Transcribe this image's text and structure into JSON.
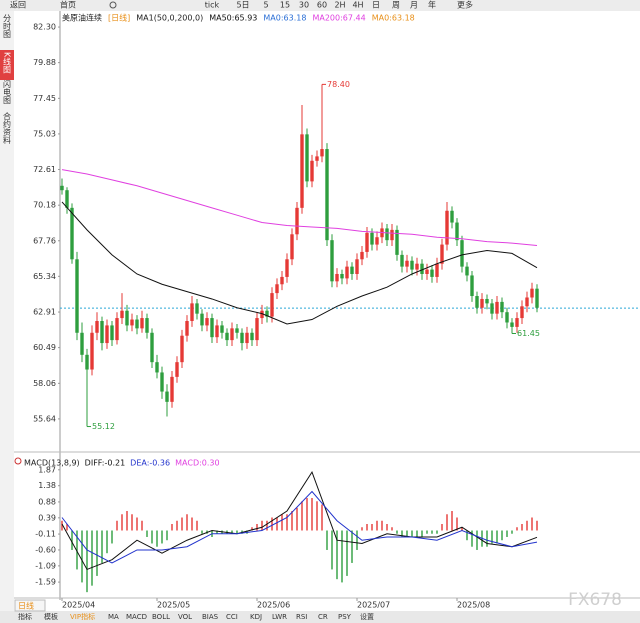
{
  "toolbar": {
    "items": [
      "返回",
      "首页",
      "tick",
      "5日",
      "5",
      "15",
      "30",
      "60",
      "2H",
      "4H",
      "日",
      "周",
      "月",
      "年",
      "更多"
    ]
  },
  "side_tabs": [
    "分时图",
    "K线图",
    "闪电图",
    "合约资料"
  ],
  "chart_data": [
    {
      "type": "candlestick",
      "title": "美原油连续",
      "period": "[日线]",
      "indicator": "MA1(50,0,200,0)",
      "ylim": [
        53.66,
        82.78
      ],
      "yticks": [
        {
          "value": 82.3,
          "label": "82.30"
        },
        79.88,
        77.45,
        75.03,
        72.61,
        70.18,
        67.76,
        65.34,
        62.91,
        60.49,
        58.06,
        55.64
      ],
      "up_color": "#e53935",
      "down_color": "#2e9e3e",
      "ohlc": [
        [
          71.5,
          72.0,
          70.9,
          71.2
        ],
        [
          71.2,
          71.4,
          69.6,
          70.0
        ],
        [
          70.0,
          70.3,
          66.2,
          66.5
        ],
        [
          66.5,
          67.0,
          61.0,
          61.5
        ],
        [
          61.5,
          62.2,
          59.5,
          60.0
        ],
        [
          60.0,
          60.4,
          55.12,
          59.0
        ],
        [
          59.0,
          62.0,
          58.6,
          61.5
        ],
        [
          61.5,
          62.9,
          61.0,
          62.3
        ],
        [
          62.3,
          62.6,
          60.3,
          60.8
        ],
        [
          60.8,
          62.4,
          60.4,
          62.0
        ],
        [
          62.0,
          62.3,
          60.6,
          61.0
        ],
        [
          61.0,
          62.9,
          60.7,
          62.5
        ],
        [
          62.5,
          64.2,
          62.1,
          63.0
        ],
        [
          63.0,
          63.4,
          61.6,
          62.0
        ],
        [
          62.0,
          62.8,
          61.6,
          62.4
        ],
        [
          62.4,
          62.7,
          61.4,
          61.8
        ],
        [
          61.8,
          63.0,
          61.5,
          62.5
        ],
        [
          62.5,
          62.8,
          61.1,
          61.5
        ],
        [
          61.5,
          61.8,
          59.1,
          59.5
        ],
        [
          59.5,
          60.0,
          58.4,
          58.8
        ],
        [
          58.8,
          59.2,
          57.0,
          57.5
        ],
        [
          57.5,
          58.0,
          55.8,
          56.8
        ],
        [
          56.8,
          58.9,
          56.4,
          58.5
        ],
        [
          58.5,
          59.9,
          58.1,
          59.5
        ],
        [
          59.5,
          61.7,
          59.1,
          61.3
        ],
        [
          61.3,
          62.7,
          60.9,
          62.3
        ],
        [
          62.3,
          64.0,
          61.9,
          63.5
        ],
        [
          63.5,
          63.8,
          62.4,
          62.8
        ],
        [
          62.8,
          63.1,
          61.6,
          62.0
        ],
        [
          62.0,
          62.9,
          61.6,
          62.5
        ],
        [
          62.5,
          62.8,
          60.8,
          61.2
        ],
        [
          61.2,
          62.4,
          60.8,
          62.0
        ],
        [
          62.0,
          62.3,
          61.1,
          61.5
        ],
        [
          61.5,
          61.8,
          60.6,
          61.0
        ],
        [
          61.0,
          62.2,
          60.6,
          61.8
        ],
        [
          61.8,
          62.1,
          61.1,
          61.5
        ],
        [
          61.5,
          61.8,
          60.3,
          60.8
        ],
        [
          60.8,
          61.9,
          60.4,
          61.5
        ],
        [
          61.5,
          61.8,
          60.6,
          61.0
        ],
        [
          61.0,
          62.9,
          60.6,
          62.5
        ],
        [
          62.5,
          63.4,
          62.1,
          63.0
        ],
        [
          63.0,
          63.3,
          62.2,
          62.6
        ],
        [
          62.6,
          64.6,
          62.2,
          64.2
        ],
        [
          64.2,
          65.2,
          63.8,
          64.8
        ],
        [
          64.8,
          65.7,
          64.4,
          65.3
        ],
        [
          65.3,
          66.9,
          64.9,
          66.5
        ],
        [
          66.5,
          68.6,
          66.1,
          68.2
        ],
        [
          68.2,
          70.4,
          67.8,
          70.0
        ],
        [
          70.0,
          77.0,
          69.6,
          75.0
        ],
        [
          75.0,
          75.4,
          71.4,
          71.8
        ],
        [
          71.8,
          73.6,
          71.4,
          73.2
        ],
        [
          73.2,
          73.9,
          72.8,
          73.5
        ],
        [
          73.5,
          78.4,
          73.1,
          74.0
        ],
        [
          74.0,
          74.4,
          67.4,
          67.8
        ],
        [
          67.8,
          68.2,
          64.6,
          65.0
        ],
        [
          65.0,
          65.9,
          64.6,
          65.5
        ],
        [
          65.5,
          65.8,
          64.8,
          65.2
        ],
        [
          65.2,
          66.4,
          64.8,
          66.0
        ],
        [
          66.0,
          66.3,
          65.1,
          65.5
        ],
        [
          65.5,
          66.9,
          65.1,
          66.5
        ],
        [
          66.5,
          67.4,
          66.1,
          67.0
        ],
        [
          67.0,
          68.7,
          66.6,
          68.3
        ],
        [
          68.3,
          68.6,
          67.1,
          67.5
        ],
        [
          67.5,
          68.4,
          67.1,
          68.0
        ],
        [
          68.0,
          69.0,
          67.6,
          68.6
        ],
        [
          68.6,
          68.9,
          67.4,
          67.8
        ],
        [
          67.8,
          68.9,
          67.4,
          68.5
        ],
        [
          68.5,
          68.8,
          66.4,
          66.8
        ],
        [
          66.8,
          67.1,
          65.6,
          66.0
        ],
        [
          66.0,
          66.8,
          65.6,
          66.4
        ],
        [
          66.4,
          66.7,
          65.4,
          65.8
        ],
        [
          65.8,
          66.6,
          65.4,
          66.2
        ],
        [
          66.2,
          66.5,
          65.1,
          65.5
        ],
        [
          65.5,
          66.2,
          65.1,
          65.8
        ],
        [
          65.8,
          66.1,
          64.9,
          65.3
        ],
        [
          65.3,
          66.6,
          64.9,
          66.2
        ],
        [
          66.2,
          67.9,
          65.8,
          67.5
        ],
        [
          67.5,
          70.4,
          67.1,
          69.8
        ],
        [
          69.8,
          70.1,
          68.6,
          69.0
        ],
        [
          69.0,
          69.3,
          67.4,
          67.8
        ],
        [
          67.8,
          68.1,
          65.6,
          66.0
        ],
        [
          66.0,
          66.3,
          65.0,
          65.4
        ],
        [
          65.4,
          65.7,
          63.6,
          64.0
        ],
        [
          64.0,
          64.3,
          62.8,
          63.2
        ],
        [
          63.2,
          64.2,
          62.8,
          63.8
        ],
        [
          63.8,
          64.1,
          63.1,
          63.5
        ],
        [
          63.5,
          63.8,
          62.4,
          62.8
        ],
        [
          62.8,
          64.0,
          62.4,
          63.6
        ],
        [
          63.6,
          63.9,
          62.5,
          62.9
        ],
        [
          62.9,
          63.2,
          61.8,
          62.2
        ],
        [
          62.2,
          62.5,
          61.45,
          61.9
        ],
        [
          61.9,
          62.9,
          61.5,
          62.5
        ],
        [
          62.5,
          63.7,
          62.1,
          63.3
        ],
        [
          63.3,
          64.3,
          62.9,
          63.9
        ],
        [
          63.9,
          64.9,
          63.5,
          64.5
        ],
        [
          64.5,
          64.8,
          62.9,
          63.2
        ]
      ],
      "series": [
        {
          "name": "MA50:65.93",
          "color": "#111111",
          "x": [
            0,
            5,
            10,
            15,
            20,
            25,
            30,
            35,
            40,
            45,
            50,
            55,
            60,
            65,
            70,
            75,
            80,
            85,
            90,
            95
          ],
          "values": [
            70.4,
            68.5,
            66.8,
            65.5,
            64.8,
            64.3,
            63.8,
            63.2,
            62.8,
            62.1,
            62.4,
            63.3,
            64.0,
            64.6,
            65.5,
            66.2,
            66.8,
            67.1,
            66.9,
            65.93
          ]
        },
        {
          "name": "MA200:67.44",
          "color": "#e040e0",
          "x": [
            0,
            5,
            10,
            15,
            20,
            25,
            30,
            35,
            40,
            45,
            50,
            55,
            60,
            65,
            70,
            75,
            80,
            85,
            90,
            95
          ],
          "values": [
            72.6,
            72.3,
            71.9,
            71.5,
            71.0,
            70.5,
            70.0,
            69.5,
            69.0,
            68.8,
            68.7,
            68.6,
            68.4,
            68.3,
            68.2,
            68.0,
            67.9,
            67.7,
            67.6,
            67.44
          ]
        }
      ],
      "ma0_labels": [
        {
          "text": "MA0:63.18",
          "color": "#2b6fd6"
        },
        {
          "text": "MA0:63.18",
          "color": "#e8901a"
        }
      ],
      "last_price": 63.18,
      "annotations": [
        "78.40",
        "55.12",
        "61.45"
      ]
    },
    {
      "type": "macd",
      "title": "MACD(13,8,9)",
      "ylim": [
        -2.08,
        2.11
      ],
      "yticks": [
        1.87,
        1.38,
        0.88,
        0.39,
        -0.11,
        {
          "value": -0.6,
          "label": "-0.60"
        },
        -1.09,
        -1.59
      ],
      "xticks": [
        {
          "value": 0,
          "label": "2025/04"
        },
        {
          "value": 19,
          "label": "2025/05"
        },
        {
          "value": 39,
          "label": "2025/06"
        },
        {
          "value": 59,
          "label": "2025/07"
        },
        {
          "value": 79,
          "label": "2025/08"
        }
      ],
      "series": [
        {
          "name": "DIFF:-0.21",
          "color": "#111111",
          "x": [
            0,
            5,
            10,
            15,
            20,
            25,
            30,
            35,
            40,
            45,
            50,
            55,
            60,
            65,
            70,
            75,
            80,
            85,
            90,
            95
          ],
          "values": [
            0.2,
            -1.2,
            -0.9,
            -0.3,
            -0.7,
            -0.3,
            0.0,
            -0.1,
            0.1,
            0.6,
            1.8,
            -0.3,
            -0.4,
            -0.1,
            -0.2,
            -0.2,
            0.1,
            -0.4,
            -0.5,
            -0.21
          ]
        },
        {
          "name": "DEA:-0.36",
          "color": "#2233cc",
          "x": [
            0,
            5,
            10,
            15,
            20,
            25,
            30,
            35,
            40,
            45,
            50,
            55,
            60,
            65,
            70,
            75,
            80,
            85,
            90,
            95
          ],
          "values": [
            0.4,
            -0.6,
            -1.0,
            -0.6,
            -0.6,
            -0.5,
            -0.1,
            -0.1,
            0.0,
            0.4,
            1.2,
            0.3,
            -0.3,
            -0.2,
            -0.2,
            -0.3,
            0.0,
            -0.3,
            -0.5,
            -0.36
          ]
        },
        {
          "name": "MACD:0.30",
          "color": "#e040e0",
          "type": "bar",
          "up_color": "#e53935",
          "down_color": "#2e9e3e",
          "values": [
            0.3,
            0.2,
            -0.6,
            -1.2,
            -1.6,
            -1.9,
            -1.7,
            -1.4,
            -1.0,
            -0.7,
            -0.4,
            0.3,
            0.5,
            0.6,
            0.5,
            0.4,
            0.3,
            -0.2,
            -0.4,
            -0.5,
            -0.4,
            -0.3,
            0.2,
            0.3,
            0.4,
            0.5,
            0.4,
            0.3,
            -0.1,
            -0.1,
            -0.2,
            -0.1,
            -0.1,
            -0.1,
            -0.1,
            -0.1,
            -0.1,
            -0.1,
            0.1,
            0.2,
            0.3,
            0.3,
            0.4,
            0.4,
            0.5,
            0.5,
            0.6,
            0.7,
            0.9,
            1.0,
            1.0,
            0.9,
            0.8,
            -0.6,
            -1.2,
            -1.5,
            -1.6,
            -1.4,
            -1.0,
            -0.6,
            0.1,
            0.2,
            0.2,
            0.3,
            0.3,
            0.2,
            0.1,
            -0.1,
            -0.2,
            -0.2,
            -0.2,
            -0.2,
            -0.2,
            -0.1,
            -0.1,
            -0.1,
            0.2,
            0.5,
            0.6,
            0.4,
            0.1,
            -0.3,
            -0.5,
            -0.6,
            -0.5,
            -0.5,
            -0.4,
            -0.4,
            -0.3,
            -0.2,
            -0.1,
            0.1,
            0.2,
            0.3,
            0.4,
            0.3
          ]
        }
      ]
    }
  ],
  "bottom_bar": {
    "period": "日线",
    "items": [
      "指标",
      "模板",
      "VIP指标",
      "MA",
      "MACD",
      "BOLL",
      "VOL",
      "BIAS",
      "CCI",
      "KDJ",
      "LWR",
      "RSI",
      "CR",
      "PSY",
      "设置"
    ]
  },
  "watermark": "FX678"
}
